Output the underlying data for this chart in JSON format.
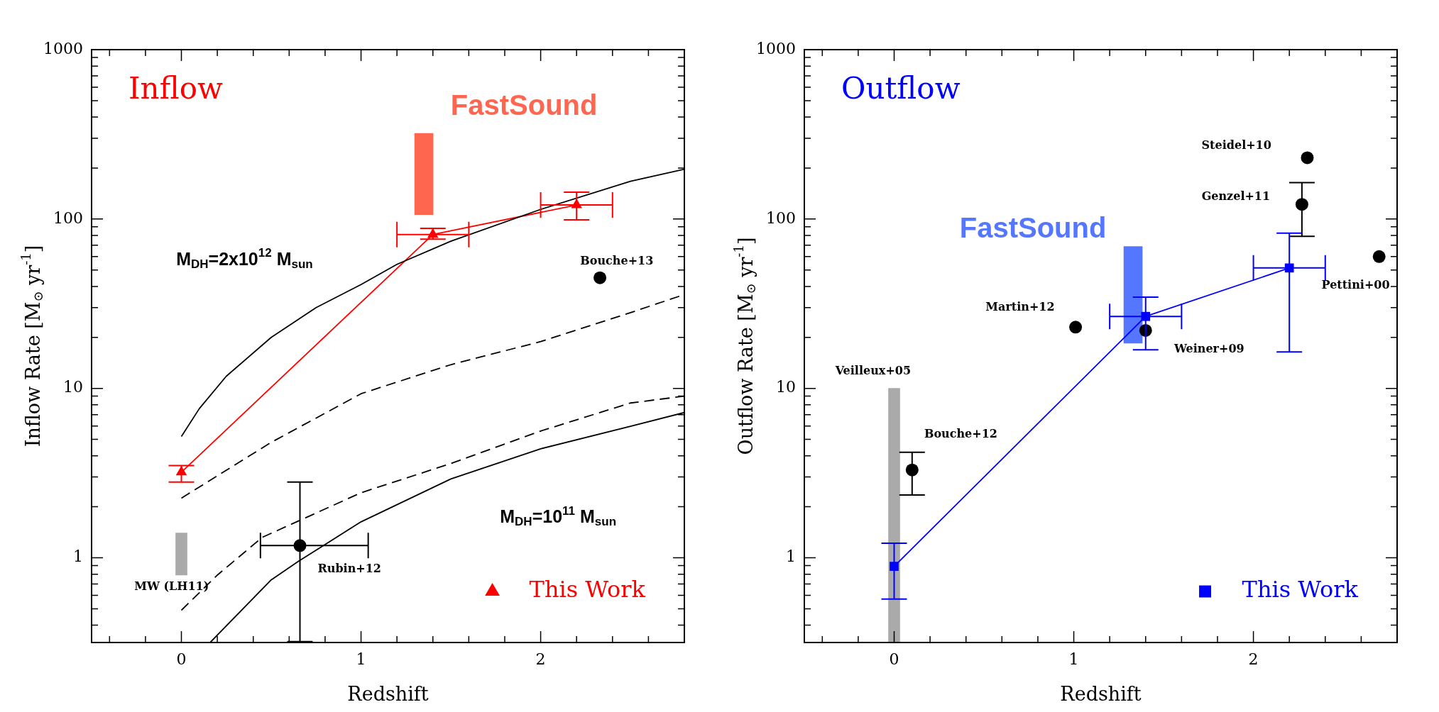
{
  "chart_data": [
    {
      "type": "line",
      "title": "Inflow",
      "xlabel": "Redshift",
      "ylabel": "Inflow Rate [M$_{⊙}$ yr$^{-1}$]",
      "log": "y",
      "legend": "bottom right",
      "xlim": [
        -0.5,
        2.8
      ],
      "ylim": [
        0.316,
        1000
      ],
      "xticks": [
        {
          "value": -0.4,
          "label": null
        },
        {
          "value": -0.2,
          "label": null
        },
        0,
        {
          "value": 0.2,
          "label": null
        },
        {
          "value": 0.4,
          "label": null
        },
        {
          "value": 0.6,
          "label": null
        },
        {
          "value": 0.8,
          "label": null
        },
        1,
        {
          "value": 1.2,
          "label": null
        },
        {
          "value": 1.4,
          "label": null
        },
        {
          "value": 1.6,
          "label": null
        },
        {
          "value": 1.8,
          "label": null
        },
        2,
        {
          "value": 2.2,
          "label": null
        },
        {
          "value": 2.4,
          "label": null
        },
        {
          "value": 2.6,
          "label": null
        }
      ],
      "yticks": [
        {
          "value": 0.4,
          "label": null
        },
        {
          "value": 0.5,
          "label": null
        },
        {
          "value": 0.6,
          "label": null
        },
        {
          "value": 0.7,
          "label": null
        },
        {
          "value": 0.8,
          "label": null
        },
        {
          "value": 0.9,
          "label": null
        },
        1,
        {
          "value": 2,
          "label": null
        },
        {
          "value": 3,
          "label": null
        },
        {
          "value": 4,
          "label": null
        },
        {
          "value": 5,
          "label": null
        },
        {
          "value": 6,
          "label": null
        },
        {
          "value": 7,
          "label": null
        },
        {
          "value": 8,
          "label": null
        },
        {
          "value": 9,
          "label": null
        },
        10,
        {
          "value": 20,
          "label": null
        },
        {
          "value": 30,
          "label": null
        },
        {
          "value": 40,
          "label": null
        },
        {
          "value": 50,
          "label": null
        },
        {
          "value": 60,
          "label": null
        },
        {
          "value": 70,
          "label": null
        },
        {
          "value": 80,
          "label": null
        },
        {
          "value": 90,
          "label": null
        },
        100,
        {
          "value": 200,
          "label": null
        },
        {
          "value": 300,
          "label": null
        },
        {
          "value": 400,
          "label": null
        },
        {
          "value": 500,
          "label": null
        },
        {
          "value": 600,
          "label": null
        },
        {
          "value": 700,
          "label": null
        },
        {
          "value": 800,
          "label": null
        },
        {
          "value": 900,
          "label": null
        },
        1000
      ],
      "series": [
        {
          "type": "bar",
          "name": "FastSound",
          "color": "#ff6650",
          "x": [
            1.35
          ],
          "base": [
            106
          ],
          "values": [
            214
          ]
        },
        {
          "type": "bar",
          "color": "#aaaaaa",
          "x": [
            0
          ],
          "base": [
            0.79
          ],
          "values": [
            0.61
          ]
        },
        {
          "color": "#000000",
          "marker": "none",
          "line_style": "solid",
          "x": [
            0,
            0.1,
            0.25,
            0.5,
            0.75,
            1.0,
            1.2,
            1.5,
            2.0,
            2.5,
            2.8
          ],
          "values": [
            5.2,
            7.6,
            11.8,
            20,
            30,
            41,
            54,
            74,
            114,
            167,
            197
          ]
        },
        {
          "color": "#000000",
          "marker": "none",
          "line_style": "dashed",
          "x": [
            0,
            0.5,
            1.0,
            1.5,
            2.0,
            2.5,
            2.8
          ],
          "values": [
            2.25,
            4.8,
            9.3,
            13.8,
            18.9,
            28,
            35.8
          ]
        },
        {
          "color": "#000000",
          "marker": "none",
          "line_style": "dashed",
          "x": [
            0,
            0.2,
            0.45,
            1.0,
            1.5,
            2.0,
            2.5,
            2.8
          ],
          "values": [
            0.49,
            0.79,
            1.32,
            2.42,
            3.6,
            5.6,
            8.2,
            9.0
          ]
        },
        {
          "color": "#000000",
          "marker": "none",
          "line_style": "solid",
          "x": [
            0.16,
            0.5,
            0.65,
            1.0,
            1.5,
            2.0,
            2.5,
            2.8
          ],
          "values": [
            0.316,
            0.74,
            0.95,
            1.63,
            2.92,
            4.4,
            5.97,
            7.2
          ]
        },
        {
          "type": "scatter",
          "color": "#000000",
          "marker": "circle",
          "x": [
            0.66,
            2.33
          ],
          "values": [
            1.18,
            45
          ],
          "errors": [
            [
              0.32,
              2.8
            ],
            null
          ],
          "xerrors": [
            [
              0.44,
              1.04
            ],
            null
          ]
        },
        {
          "name": "This Work",
          "color": "#ff0000",
          "marker": "triangle",
          "line_style": "solid",
          "x": [
            0,
            1.4,
            2.2
          ],
          "values": [
            3.2,
            81,
            121
          ],
          "errors": [
            [
              2.8,
              3.5
            ],
            [
              76,
              88
            ],
            [
              99,
              144
            ]
          ],
          "xerrors": [
            null,
            [
              1.2,
              1.6
            ],
            [
              2.0,
              2.4
            ]
          ]
        }
      ],
      "annotations": [
        "M$_{DH}$=2x10$^{12}$ M$_{sun}$",
        "M$_{DH}$=10$^{11}$ M$_{sun}$",
        "MW (LH11)",
        "Rubin+12",
        "Bouche+13"
      ]
    },
    {
      "type": "line",
      "title": "Outflow",
      "xlabel": "Redshift",
      "ylabel": "Outflow Rate [M$_{⊙}$ yr$^{-1}$]",
      "log": "y",
      "legend": "bottom right",
      "xlim": [
        -0.5,
        2.8
      ],
      "ylim": [
        0.316,
        1000
      ],
      "xticks": [
        {
          "value": -0.4,
          "label": null
        },
        {
          "value": -0.2,
          "label": null
        },
        0,
        {
          "value": 0.2,
          "label": null
        },
        {
          "value": 0.4,
          "label": null
        },
        {
          "value": 0.6,
          "label": null
        },
        {
          "value": 0.8,
          "label": null
        },
        1,
        {
          "value": 1.2,
          "label": null
        },
        {
          "value": 1.4,
          "label": null
        },
        {
          "value": 1.6,
          "label": null
        },
        {
          "value": 1.8,
          "label": null
        },
        2,
        {
          "value": 2.2,
          "label": null
        },
        {
          "value": 2.4,
          "label": null
        },
        {
          "value": 2.6,
          "label": null
        }
      ],
      "yticks": [
        {
          "value": 0.4,
          "label": null
        },
        {
          "value": 0.5,
          "label": null
        },
        {
          "value": 0.6,
          "label": null
        },
        {
          "value": 0.7,
          "label": null
        },
        {
          "value": 0.8,
          "label": null
        },
        {
          "value": 0.9,
          "label": null
        },
        1,
        {
          "value": 2,
          "label": null
        },
        {
          "value": 3,
          "label": null
        },
        {
          "value": 4,
          "label": null
        },
        {
          "value": 5,
          "label": null
        },
        {
          "value": 6,
          "label": null
        },
        {
          "value": 7,
          "label": null
        },
        {
          "value": 8,
          "label": null
        },
        {
          "value": 9,
          "label": null
        },
        10,
        {
          "value": 20,
          "label": null
        },
        {
          "value": 30,
          "label": null
        },
        {
          "value": 40,
          "label": null
        },
        {
          "value": 50,
          "label": null
        },
        {
          "value": 60,
          "label": null
        },
        {
          "value": 70,
          "label": null
        },
        {
          "value": 80,
          "label": null
        },
        {
          "value": 90,
          "label": null
        },
        100,
        {
          "value": 200,
          "label": null
        },
        {
          "value": 300,
          "label": null
        },
        {
          "value": 400,
          "label": null
        },
        {
          "value": 500,
          "label": null
        },
        {
          "value": 600,
          "label": null
        },
        {
          "value": 700,
          "label": null
        },
        {
          "value": 800,
          "label": null
        },
        {
          "value": 900,
          "label": null
        },
        1000
      ],
      "series": [
        {
          "type": "bar",
          "color": "#aaaaaa",
          "x": [
            0
          ],
          "base": [
            0.32
          ],
          "values": [
            9.68
          ]
        },
        {
          "type": "bar",
          "name": "FastSound",
          "color": "#5577ff",
          "x": [
            1.33
          ],
          "base": [
            18.5
          ],
          "values": [
            50.3
          ]
        },
        {
          "type": "scatter",
          "color": "#000000",
          "marker": "circle",
          "x": [
            0.1,
            1.01,
            1.4,
            2.27,
            2.3,
            2.7
          ],
          "values": [
            3.3,
            23,
            22,
            122,
            230,
            60
          ],
          "errors": [
            [
              2.35,
              4.2
            ],
            null,
            null,
            [
              79,
              164
            ],
            null,
            null
          ]
        },
        {
          "name": "This Work",
          "color": "#0000ff",
          "marker": "square",
          "line_style": "solid",
          "x": [
            0,
            1.4,
            2.2
          ],
          "values": [
            0.89,
            26.6,
            51.4
          ],
          "errors": [
            [
              0.57,
              1.22
            ],
            [
              16.9,
              34.6
            ],
            [
              16.4,
              82.5
            ]
          ],
          "xerrors": [
            null,
            [
              1.2,
              1.6
            ],
            [
              2.0,
              2.4
            ]
          ]
        }
      ],
      "annotations": [
        "Steidel+10",
        "Genzel+11",
        "Pettini+00",
        "Martin+12",
        "Weiner+09",
        "Veilleux+05",
        "Bouche+12"
      ]
    }
  ]
}
